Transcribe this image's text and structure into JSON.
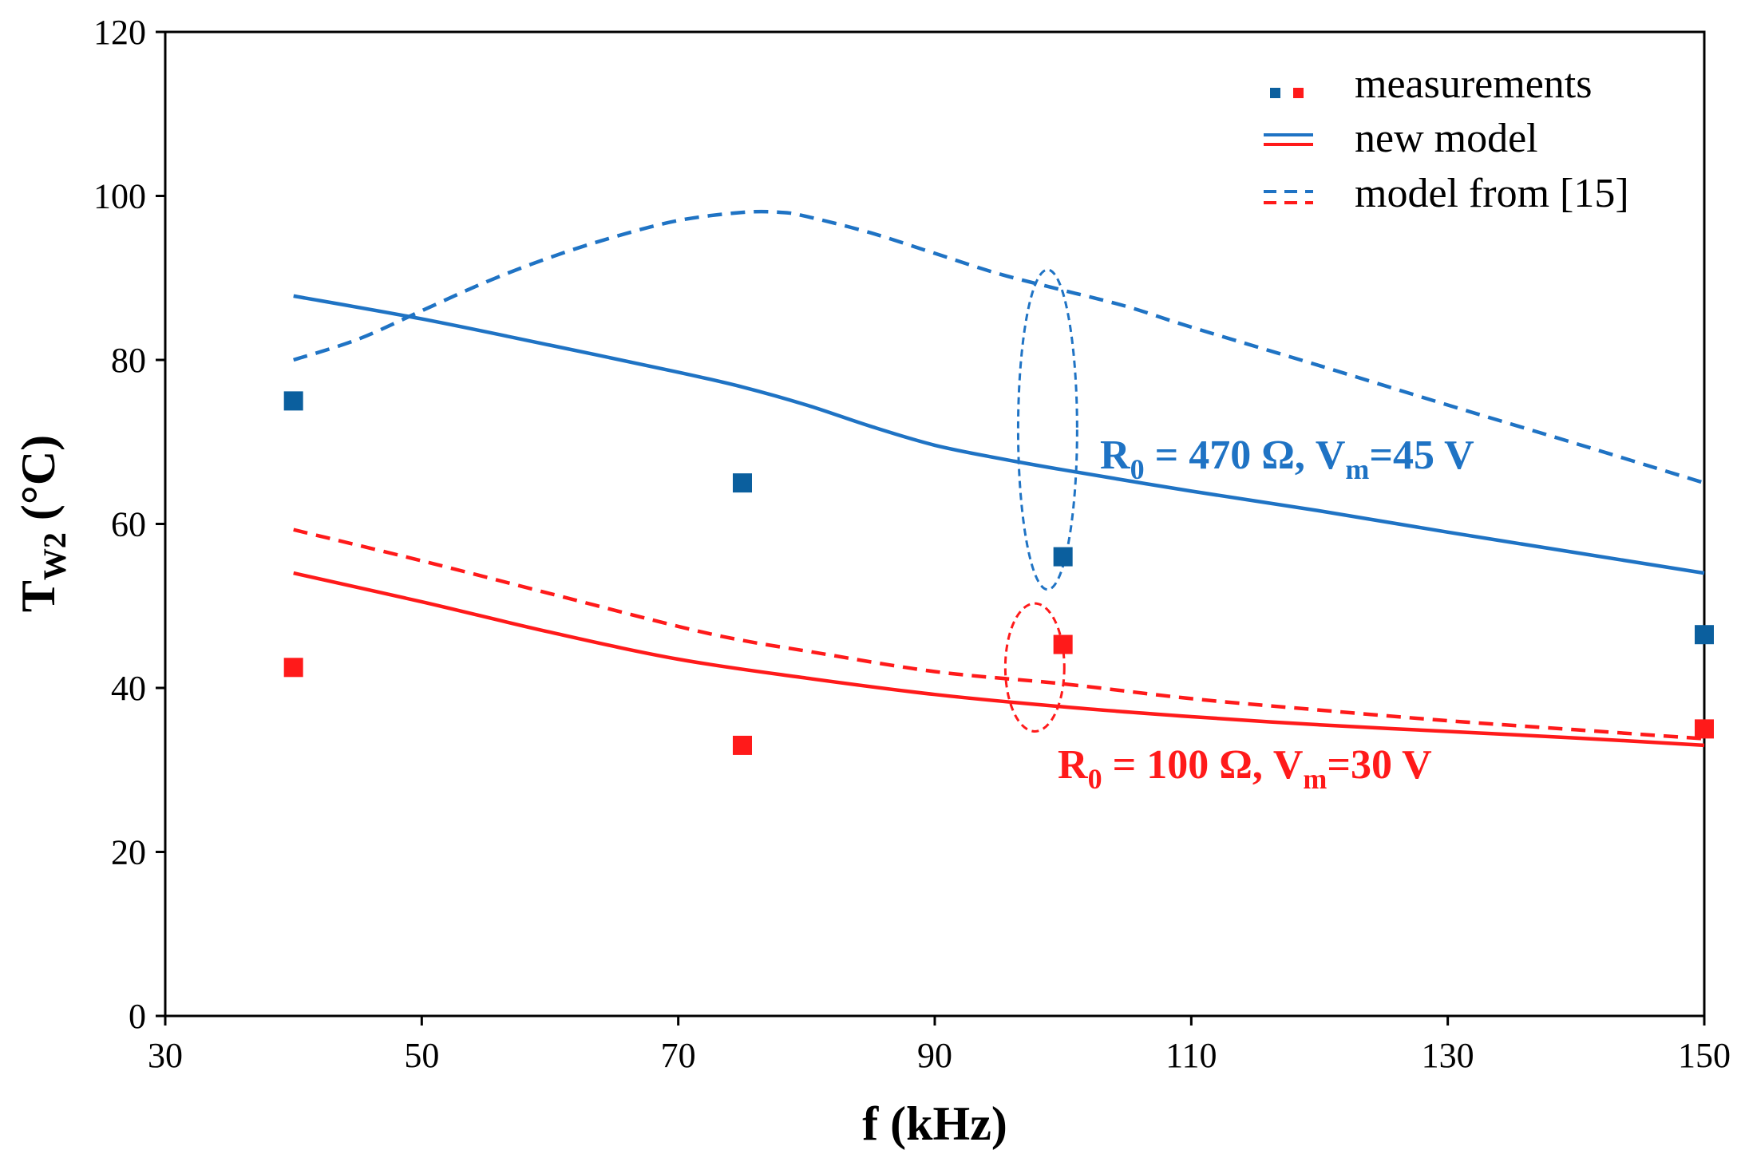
{
  "chart_data": {
    "type": "scatter",
    "title": "",
    "xlabel": "f (kHz)",
    "ylabel_main": "T",
    "ylabel_sub": "W2",
    "ylabel_unit": " (°C)",
    "xlim": [
      30,
      150
    ],
    "ylim": [
      0,
      120
    ],
    "xticks": [
      "30",
      "50",
      "70",
      "90",
      "110",
      "130",
      "150"
    ],
    "yticks": [
      "0",
      "20",
      "40",
      "60",
      "80",
      "100",
      "120"
    ],
    "grid": false,
    "colors": {
      "blue": "#1f73c4",
      "blue_marker": "#0b5f9e",
      "red": "#ff1a1a"
    },
    "legend": {
      "position": "top-right",
      "entries": [
        "measurements",
        "new model",
        "model from [15]"
      ]
    },
    "series": [
      {
        "name": "measurements (R0 = 470 Ω, Vm=45 V)",
        "style": "marker",
        "color": "blue_marker",
        "x": [
          40,
          75,
          100,
          150
        ],
        "y": [
          75,
          65,
          56,
          46.5
        ]
      },
      {
        "name": "measurements (R0 = 100 Ω, Vm=30 V)",
        "style": "marker",
        "color": "red",
        "x": [
          40,
          75,
          100,
          150
        ],
        "y": [
          42.5,
          33,
          45.3,
          35
        ]
      },
      {
        "name": "new model (R0 = 470 Ω, Vm=45 V)",
        "style": "solid",
        "color": "blue",
        "x": [
          40,
          50,
          60,
          70,
          75,
          80,
          85,
          90,
          95,
          100,
          110,
          120,
          130,
          140,
          150
        ],
        "y": [
          87.8,
          85,
          81.8,
          78.5,
          76.7,
          74.5,
          71.9,
          69.6,
          68,
          66.6,
          64,
          61.6,
          59,
          56.5,
          54
        ]
      },
      {
        "name": "new model (R0 = 100 Ω, Vm=30 V)",
        "style": "solid",
        "color": "red",
        "x": [
          40,
          50,
          60,
          70,
          80,
          90,
          100,
          110,
          120,
          130,
          140,
          150
        ],
        "y": [
          54,
          50.5,
          46.8,
          43.5,
          41.2,
          39.2,
          37.7,
          36.5,
          35.5,
          34.7,
          33.9,
          33
        ]
      },
      {
        "name": "model from [15] (R0 = 470 Ω, Vm=45 V)",
        "style": "dashed",
        "color": "blue",
        "x": [
          40,
          45,
          50,
          55,
          60,
          65,
          70,
          75,
          78,
          80,
          85,
          90,
          95,
          100,
          105,
          110,
          120,
          130,
          140,
          150
        ],
        "y": [
          80,
          82.5,
          86,
          89.5,
          92.5,
          95,
          97,
          98,
          98,
          97.5,
          95.5,
          93,
          90.5,
          88.5,
          86.5,
          84,
          79.3,
          74.5,
          69.8,
          65
        ]
      },
      {
        "name": "model from [15] (R0 = 100 Ω, Vm=30 V)",
        "style": "dashed",
        "color": "red",
        "x": [
          40,
          50,
          60,
          70,
          75,
          80,
          90,
          100,
          110,
          120,
          130,
          140,
          150
        ],
        "y": [
          59.3,
          55.5,
          51.5,
          47.5,
          45.8,
          44.5,
          42,
          40.5,
          38.7,
          37.3,
          36,
          34.9,
          33.8
        ]
      }
    ],
    "annotations": [
      {
        "color": "blue",
        "parts": [
          "R",
          "0",
          " = 470 Ω, V",
          "m",
          "=45 V"
        ]
      },
      {
        "color": "red",
        "parts": [
          "R",
          "0",
          " = 100 Ω, V",
          "m",
          "=30 V"
        ]
      }
    ],
    "ellipses": [
      {
        "color": "blue",
        "cx": 98.8,
        "cy": 71.5,
        "rx": 2.3,
        "ry": 19.5
      },
      {
        "color": "red",
        "cx": 97.8,
        "cy": 42.5,
        "rx": 2.3,
        "ry": 7.8
      }
    ]
  }
}
